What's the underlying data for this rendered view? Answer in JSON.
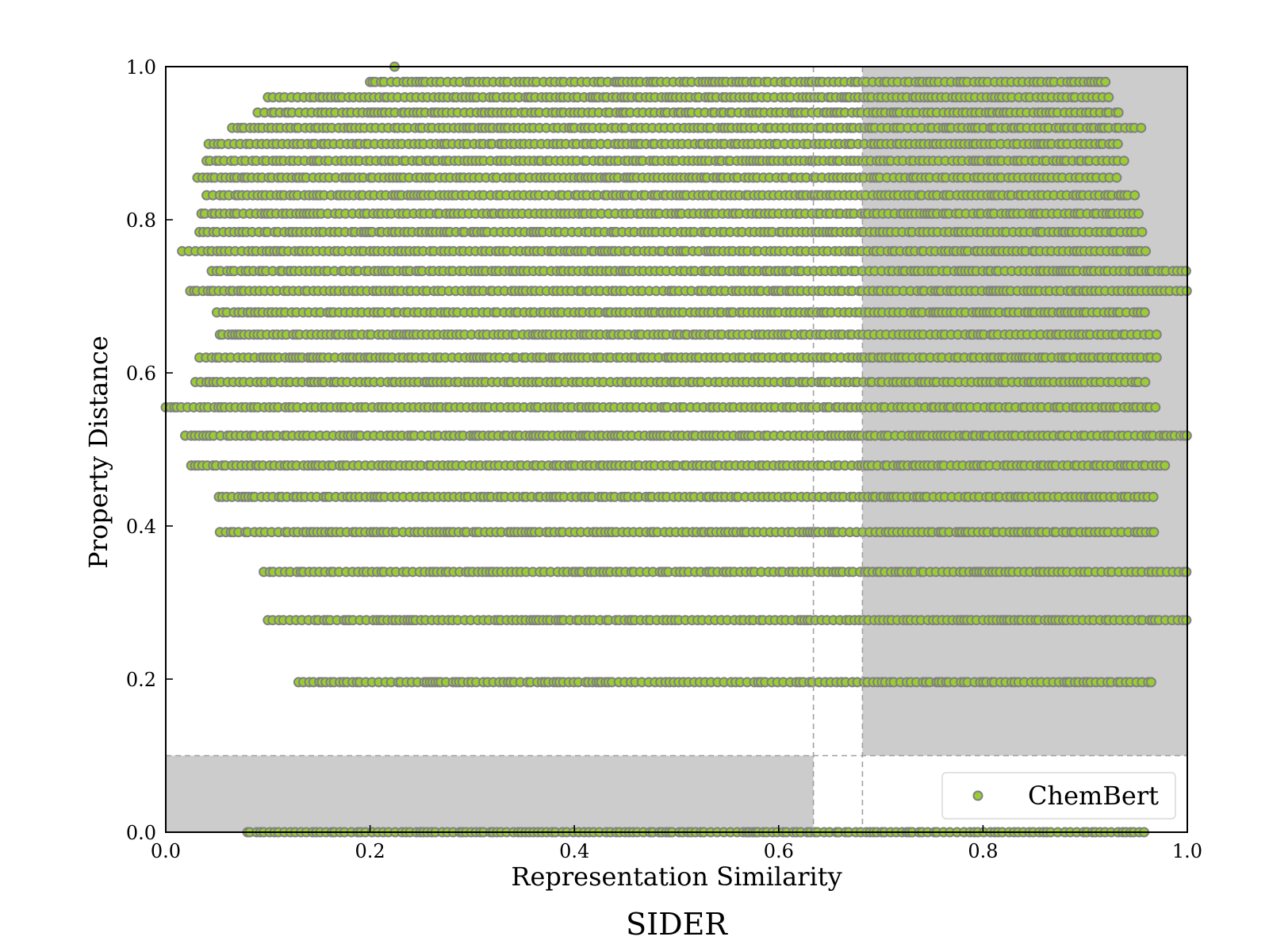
{
  "chart_data": {
    "type": "scatter",
    "title": "SIDER",
    "xlabel": "Representation Similarity",
    "ylabel": "Property Distance",
    "xlim": [
      0.0,
      1.0
    ],
    "ylim": [
      0.0,
      1.0
    ],
    "xticks": [
      {
        "value": 0.0,
        "label": "0.0"
      },
      {
        "value": 0.2,
        "label": "0.2"
      },
      {
        "value": 0.4,
        "label": "0.4"
      },
      {
        "value": 0.6,
        "label": "0.6"
      },
      {
        "value": 0.8,
        "label": "0.8"
      },
      {
        "value": 1.0,
        "label": "1.0"
      }
    ],
    "yticks": [
      {
        "value": 0.0,
        "label": "0.0"
      },
      {
        "value": 0.2,
        "label": "0.2"
      },
      {
        "value": 0.4,
        "label": "0.4"
      },
      {
        "value": 0.6,
        "label": "0.6"
      },
      {
        "value": 0.8,
        "label": "0.8"
      },
      {
        "value": 1.0,
        "label": "1.0"
      }
    ],
    "grid": false,
    "legend": {
      "position": "bottom-right",
      "entries": [
        "ChemBert"
      ]
    },
    "series": [
      {
        "name": "ChemBert",
        "marker_fill": "#9acd32",
        "marker_edge": "#808080",
        "rows": [
          {
            "y": 0.0,
            "x_min": 0.08,
            "x_max": 0.96
          },
          {
            "y": 0.196,
            "x_min": 0.13,
            "x_max": 0.965
          },
          {
            "y": 0.277,
            "x_min": 0.1,
            "x_max": 1.0
          },
          {
            "y": 0.34,
            "x_min": 0.096,
            "x_max": 1.0
          },
          {
            "y": 0.392,
            "x_min": 0.053,
            "x_max": 0.97
          },
          {
            "y": 0.438,
            "x_min": 0.052,
            "x_max": 0.97
          },
          {
            "y": 0.479,
            "x_min": 0.025,
            "x_max": 0.98
          },
          {
            "y": 0.518,
            "x_min": 0.019,
            "x_max": 1.0
          },
          {
            "y": 0.555,
            "x_min": 0.0,
            "x_max": 0.97
          },
          {
            "y": 0.588,
            "x_min": 0.029,
            "x_max": 0.96
          },
          {
            "y": 0.62,
            "x_min": 0.033,
            "x_max": 0.97
          },
          {
            "y": 0.65,
            "x_min": 0.053,
            "x_max": 0.97
          },
          {
            "y": 0.679,
            "x_min": 0.05,
            "x_max": 0.96
          },
          {
            "y": 0.707,
            "x_min": 0.024,
            "x_max": 1.0
          },
          {
            "y": 0.733,
            "x_min": 0.045,
            "x_max": 1.0
          },
          {
            "y": 0.759,
            "x_min": 0.016,
            "x_max": 0.96
          },
          {
            "y": 0.784,
            "x_min": 0.033,
            "x_max": 0.96
          },
          {
            "y": 0.808,
            "x_min": 0.035,
            "x_max": 0.955
          },
          {
            "y": 0.832,
            "x_min": 0.04,
            "x_max": 0.95
          },
          {
            "y": 0.855,
            "x_min": 0.031,
            "x_max": 0.935
          },
          {
            "y": 0.877,
            "x_min": 0.04,
            "x_max": 0.94
          },
          {
            "y": 0.899,
            "x_min": 0.042,
            "x_max": 0.935
          },
          {
            "y": 0.92,
            "x_min": 0.065,
            "x_max": 0.96
          },
          {
            "y": 0.94,
            "x_min": 0.09,
            "x_max": 0.935
          },
          {
            "y": 0.96,
            "x_min": 0.1,
            "x_max": 0.925
          },
          {
            "y": 0.98,
            "x_min": 0.2,
            "x_max": 0.92
          },
          {
            "y": 1.0,
            "x_min": 0.224,
            "x_max": 0.224
          }
        ]
      }
    ],
    "shaded_regions": [
      {
        "x": [
          0.0,
          0.634
        ],
        "y": [
          0.0,
          0.1
        ],
        "color": "#cccccc"
      },
      {
        "x": [
          0.682,
          1.0
        ],
        "y": [
          0.1,
          1.0
        ],
        "color": "#cccccc"
      }
    ],
    "reference_lines": [
      {
        "orientation": "vertical",
        "value": 0.634,
        "style": "dashed",
        "color": "#a0a0a0"
      },
      {
        "orientation": "vertical",
        "value": 0.682,
        "style": "dashed",
        "color": "#a0a0a0"
      },
      {
        "orientation": "horizontal",
        "value": 0.1,
        "style": "dashed",
        "color": "#a0a0a0"
      }
    ]
  }
}
